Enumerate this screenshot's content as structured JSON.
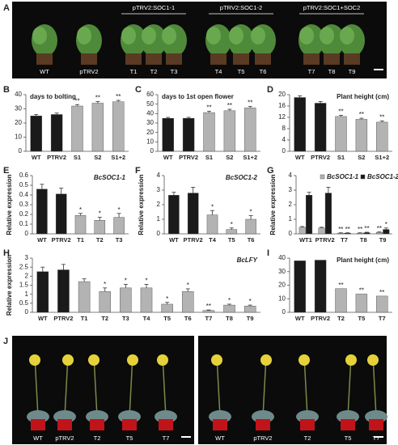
{
  "photos": {
    "A": {
      "label": "A",
      "groups": [
        "pTRV2:SOC1-1",
        "pTRV2:SOC1-2",
        "pTRV2:SOC1+SOC2"
      ],
      "plants": [
        "WT",
        "pTRV2",
        "T1",
        "T2",
        "T3",
        "T4",
        "T5",
        "T6",
        "T7",
        "T8",
        "T9"
      ]
    },
    "J": {
      "label": "J",
      "left": [
        "WT",
        "pTRV2",
        "T2",
        "T5",
        "T7"
      ],
      "right": [
        "WT",
        "pTRV2",
        "T2",
        "T5",
        "T7"
      ]
    }
  },
  "chart_data": [
    {
      "type": "bar",
      "label": "B",
      "title": "days to bolting",
      "categories": [
        "WT",
        "PTRV2",
        "S1",
        "S2",
        "S1+2"
      ],
      "values": [
        25,
        26,
        32,
        34,
        35
      ],
      "errors": [
        1,
        1,
        1,
        1.2,
        1
      ],
      "annotations": [
        null,
        null,
        "**",
        "**",
        "**"
      ],
      "colors": [
        "#1a1a1a",
        "#1a1a1a",
        "#b3b3b3",
        "#b3b3b3",
        "#b3b3b3"
      ],
      "ylim": [
        0,
        40
      ],
      "yticks": [
        0,
        10,
        20,
        30,
        40
      ]
    },
    {
      "type": "bar",
      "label": "C",
      "title": "days to 1st open flower",
      "categories": [
        "WT",
        "PTRV2",
        "S1",
        "S2",
        "S1+2"
      ],
      "values": [
        35,
        35,
        41,
        43,
        46
      ],
      "errors": [
        1,
        1,
        1.5,
        1.5,
        1.5
      ],
      "annotations": [
        null,
        null,
        "**",
        "**",
        "**"
      ],
      "colors": [
        "#1a1a1a",
        "#1a1a1a",
        "#b3b3b3",
        "#b3b3b3",
        "#b3b3b3"
      ],
      "ylim": [
        0,
        60
      ],
      "yticks": [
        0,
        10,
        20,
        30,
        40,
        50,
        60
      ]
    },
    {
      "type": "bar",
      "label": "D",
      "title": "Plant height (cm)",
      "categories": [
        "WT",
        "PTRV2",
        "S1",
        "S2",
        "S1+2"
      ],
      "values": [
        19,
        17,
        12.3,
        11.3,
        10.3
      ],
      "errors": [
        0.6,
        0.6,
        0.4,
        0.4,
        0.4
      ],
      "annotations": [
        null,
        null,
        "**",
        "**",
        "**"
      ],
      "colors": [
        "#1a1a1a",
        "#1a1a1a",
        "#b3b3b3",
        "#b3b3b3",
        "#b3b3b3"
      ],
      "ylim": [
        0,
        20
      ],
      "yticks": [
        0,
        4,
        8,
        12,
        16,
        20
      ]
    },
    {
      "type": "bar",
      "label": "E",
      "title": "BcSOC1-1",
      "ylabel": "Relative expression",
      "categories": [
        "WT",
        "PTRV2",
        "T1",
        "T2",
        "T3"
      ],
      "values": [
        0.46,
        0.41,
        0.19,
        0.14,
        0.17
      ],
      "errors": [
        0.05,
        0.06,
        0.02,
        0.03,
        0.04
      ],
      "annotations": [
        null,
        null,
        "*",
        "*",
        "*"
      ],
      "colors": [
        "#1a1a1a",
        "#1a1a1a",
        "#b3b3b3",
        "#b3b3b3",
        "#b3b3b3"
      ],
      "ylim": [
        0,
        0.6
      ],
      "yticks": [
        0,
        0.1,
        0.2,
        0.3,
        0.4,
        0.5,
        0.6
      ]
    },
    {
      "type": "bar",
      "label": "F",
      "title": "BcSOC1-2",
      "ylabel": "Relative expression",
      "categories": [
        "WT",
        "PTRV2",
        "T4",
        "T5",
        "T6"
      ],
      "values": [
        2.65,
        2.8,
        1.3,
        0.3,
        1.0
      ],
      "errors": [
        0.2,
        0.4,
        0.3,
        0.1,
        0.25
      ],
      "annotations": [
        null,
        null,
        "*",
        "*",
        "*"
      ],
      "colors": [
        "#1a1a1a",
        "#1a1a1a",
        "#b3b3b3",
        "#b3b3b3",
        "#b3b3b3"
      ],
      "ylim": [
        0,
        4
      ],
      "yticks": [
        0,
        1,
        2,
        3,
        4
      ]
    },
    {
      "type": "bar",
      "label": "G",
      "ylabel": "Relative expression",
      "categories": [
        "WT1",
        "PTRV2",
        "T7",
        "T8",
        "T9"
      ],
      "series": [
        {
          "name": "BcSOC1-1",
          "color": "#b3b3b3",
          "values": [
            0.45,
            0.4,
            0.05,
            0.05,
            0.1
          ],
          "errors": [
            0.05,
            0.05,
            0.02,
            0.02,
            0.03
          ],
          "annotations": [
            null,
            null,
            "**",
            "**",
            "**"
          ]
        },
        {
          "name": "BcSOC1-2",
          "color": "#1a1a1a",
          "values": [
            2.65,
            2.8,
            0.05,
            0.08,
            0.3
          ],
          "errors": [
            0.2,
            0.4,
            0.02,
            0.03,
            0.1
          ],
          "annotations": [
            null,
            null,
            "**",
            "**",
            "*"
          ]
        }
      ],
      "ylim": [
        0,
        4
      ],
      "yticks": [
        0,
        1,
        2,
        3,
        4
      ],
      "legend": "top"
    },
    {
      "type": "bar",
      "label": "H",
      "title": "BcLFY",
      "ylabel": "Relative expression",
      "categories": [
        "WT",
        "PTRV2",
        "T1",
        "T2",
        "T3",
        "T4",
        "T5",
        "T6",
        "T7",
        "T8",
        "T9"
      ],
      "values": [
        2.25,
        2.35,
        1.7,
        1.15,
        1.35,
        1.35,
        0.45,
        1.15,
        0.1,
        0.4,
        0.35
      ],
      "errors": [
        0.25,
        0.3,
        0.15,
        0.2,
        0.2,
        0.2,
        0.1,
        0.15,
        0.03,
        0.05,
        0.05
      ],
      "annotations": [
        null,
        null,
        null,
        "*",
        "*",
        "*",
        "*",
        "*",
        "**",
        "*",
        "*"
      ],
      "colors": [
        "#1a1a1a",
        "#1a1a1a",
        "#b3b3b3",
        "#b3b3b3",
        "#b3b3b3",
        "#b3b3b3",
        "#b3b3b3",
        "#b3b3b3",
        "#b3b3b3",
        "#b3b3b3",
        "#b3b3b3"
      ],
      "ylim": [
        0,
        3
      ],
      "yticks": [
        0,
        0.5,
        1,
        1.5,
        2,
        2.5,
        3
      ]
    },
    {
      "type": "bar",
      "label": "I",
      "title": "Plant height (cm)",
      "categories": [
        "WT",
        "PTRV2",
        "T2",
        "T5",
        "T7"
      ],
      "values": [
        38,
        38.5,
        17.5,
        13.5,
        12
      ],
      "annotations": [
        null,
        null,
        "**",
        "**",
        "**"
      ],
      "colors": [
        "#1a1a1a",
        "#1a1a1a",
        "#b3b3b3",
        "#b3b3b3",
        "#b3b3b3"
      ],
      "ylim": [
        0,
        40
      ],
      "yticks": [
        0,
        10,
        20,
        30,
        40
      ]
    }
  ]
}
